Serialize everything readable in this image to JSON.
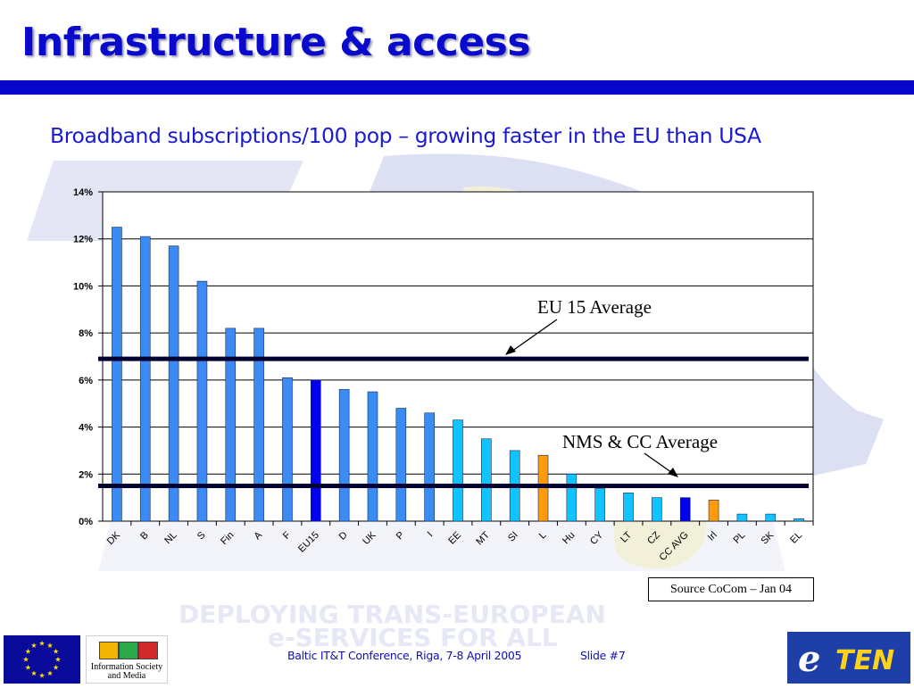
{
  "slide": {
    "title": "Infrastructure & access",
    "subtitle": "Broadband subscriptions/100 pop – growing faster in the EU than USA",
    "source": "Source CoCom – Jan 04"
  },
  "footer": {
    "text": "Baltic IT&T Conference, Riga, 7-8 April 2005",
    "slide_number": "Slide #7",
    "logo_infosoc_line1": "Information Society",
    "logo_infosoc_line2": "and Media",
    "logo_eten_left": "e",
    "logo_eten_right": "TEN"
  },
  "colors": {
    "title": "#0a0acc",
    "rule": "#0606c8",
    "eu15": "#3a8cf2",
    "eu15_avg": "#0000ee",
    "nms": "#10c4ff",
    "cc": "#ff9a0a",
    "cc_avg": "#0000ee",
    "average_line": "#000033"
  },
  "chart_data": {
    "type": "bar",
    "categories": [
      "DK",
      "B",
      "NL",
      "S",
      "Fin",
      "A",
      "F",
      "EU15",
      "D",
      "UK",
      "P",
      "I",
      "EE",
      "MT",
      "SI",
      "L",
      "Hu",
      "CY",
      "LT",
      "CZ",
      "CC AVG",
      "Irl",
      "PL",
      "SK",
      "EL"
    ],
    "values": [
      12.5,
      12.1,
      11.7,
      10.2,
      8.2,
      8.2,
      6.1,
      6.0,
      5.6,
      5.5,
      4.8,
      4.6,
      4.3,
      3.5,
      3.0,
      2.8,
      2.0,
      1.4,
      1.2,
      1.0,
      1.0,
      0.9,
      0.3,
      0.3,
      0.1
    ],
    "bar_groups": [
      "eu15",
      "eu15",
      "eu15",
      "eu15",
      "eu15",
      "eu15",
      "eu15",
      "eu15_avg",
      "eu15",
      "eu15",
      "eu15",
      "eu15",
      "nms",
      "nms",
      "nms",
      "cc",
      "nms",
      "nms",
      "nms",
      "nms",
      "cc_avg",
      "cc",
      "nms",
      "nms",
      "nms"
    ],
    "y_unit": "%",
    "ylim": [
      0,
      14
    ],
    "yticks": [
      0,
      2,
      4,
      6,
      8,
      10,
      12,
      14
    ],
    "ytick_labels": [
      "0%",
      "2%",
      "4%",
      "6%",
      "8%",
      "10%",
      "12%",
      "14%"
    ],
    "grid": true,
    "xlabel": "",
    "ylabel": "",
    "reference_lines": [
      {
        "name": "EU 15 Average",
        "value": 6.9
      },
      {
        "name": "NMS & CC Average",
        "value": 1.5
      }
    ]
  }
}
